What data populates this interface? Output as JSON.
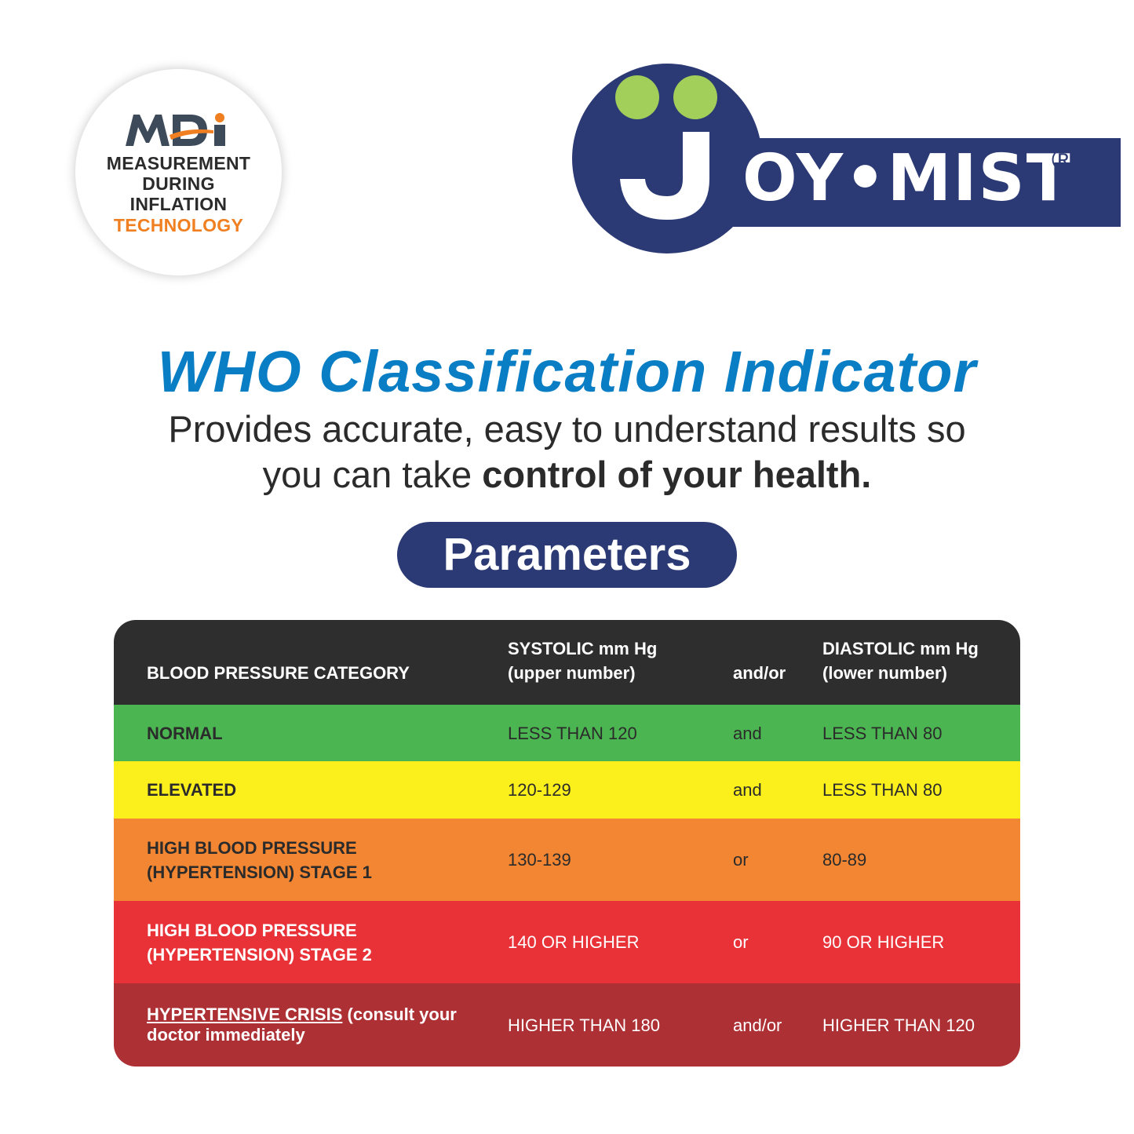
{
  "badge": {
    "logo_text": "MDi",
    "line1": "MEASUREMENT",
    "line2": "DURING",
    "line3": "INFLATION",
    "line4": "TECHNOLOGY"
  },
  "brand": {
    "word": "OY•MIST",
    "registered": "®",
    "colors": {
      "navy": "#2b3a74",
      "green": "#a2cf5a"
    }
  },
  "heading": {
    "title": "WHO Classification Indicator",
    "subtitle_line1": "Provides accurate, easy to understand results so",
    "subtitle_line2_plain": "you can take ",
    "subtitle_line2_bold": "control of your health."
  },
  "pill": {
    "label": "Parameters"
  },
  "table": {
    "headers": {
      "category": "BLOOD PRESSURE CATEGORY",
      "systolic_line1": "SYSTOLIC mm Hg",
      "systolic_line2": "(upper number)",
      "andor": "and/or",
      "diastolic_line1": "DIASTOLIC mm Hg",
      "diastolic_line2": "(lower number)"
    },
    "rows": [
      {
        "category": "NORMAL",
        "systolic": "LESS THAN 120",
        "conj": "and",
        "diastolic": "LESS THAN 80",
        "color": "#4bb551"
      },
      {
        "category": "ELEVATED",
        "systolic": "120-129",
        "conj": "and",
        "diastolic": "LESS THAN 80",
        "color": "#fcf01c"
      },
      {
        "category_line1": "HIGH BLOOD PRESSURE",
        "category_line2": "(HYPERTENSION) STAGE 1",
        "systolic": "130-139",
        "conj": "or",
        "diastolic": "80-89",
        "color": "#f28632"
      },
      {
        "category_line1": "HIGH BLOOD PRESSURE",
        "category_line2": "(HYPERTENSION) STAGE 2",
        "systolic": "140 OR HIGHER",
        "conj": "or",
        "diastolic": "90 OR HIGHER",
        "color": "#e83238"
      },
      {
        "category_underlined": "HYPERTENSIVE CRISIS",
        "category_rest": " (consult your",
        "category_line2": "doctor immediately",
        "systolic": "HIGHER THAN 180",
        "conj": "and/or",
        "diastolic": "HIGHER THAN 120",
        "color": "#ad3035"
      }
    ]
  }
}
